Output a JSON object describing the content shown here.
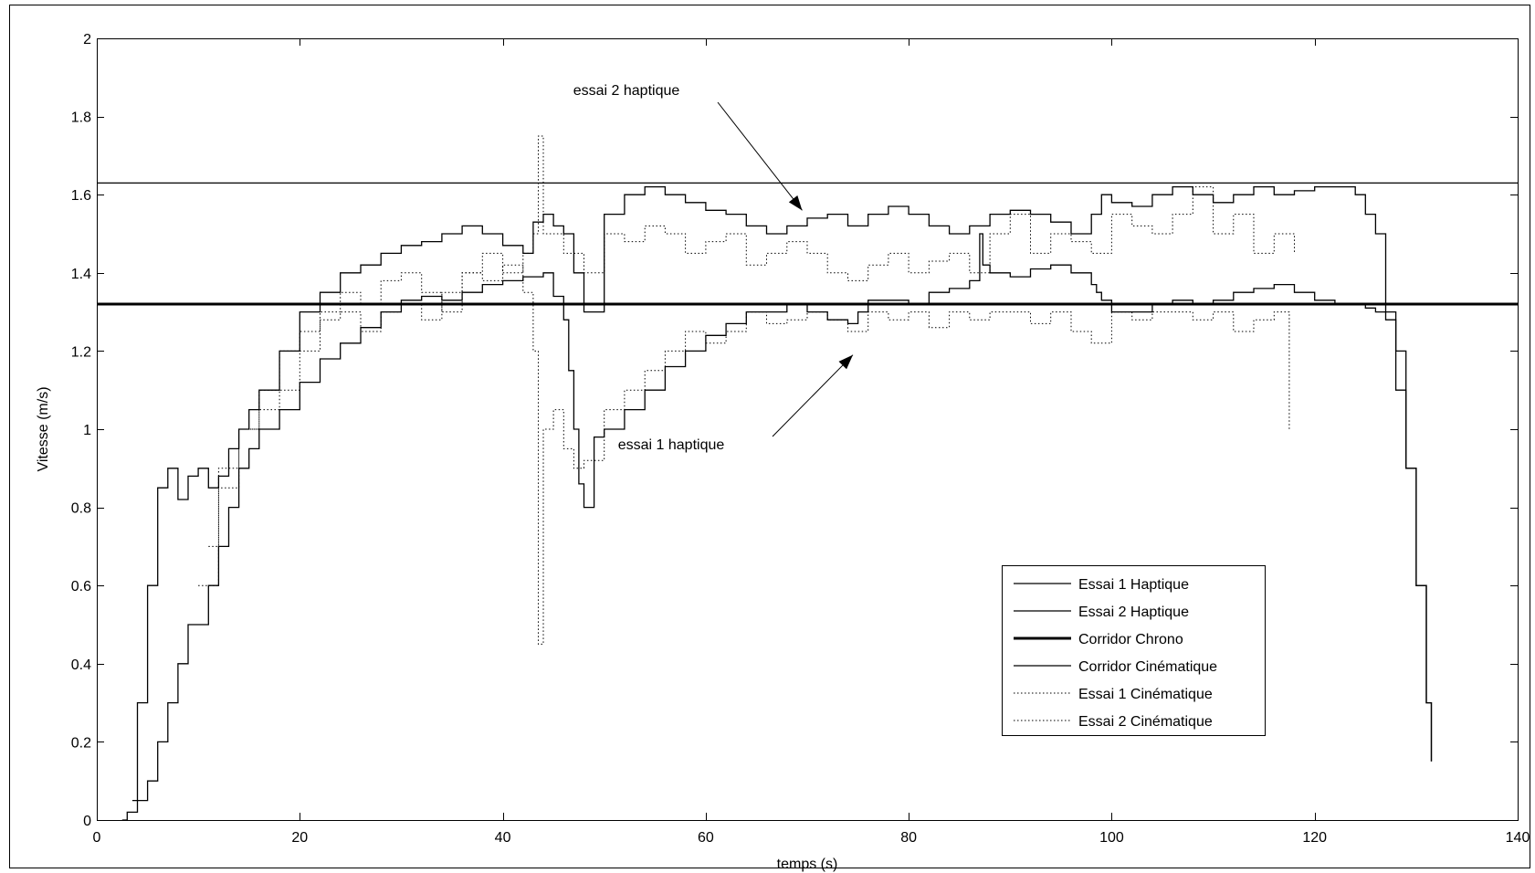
{
  "chart_data": {
    "type": "line",
    "title": "",
    "xlabel": "temps (s)",
    "ylabel": "Vitesse (m/s)",
    "xlim": [
      0,
      140
    ],
    "ylim": [
      0,
      2
    ],
    "xticks": [
      0,
      20,
      40,
      60,
      80,
      100,
      120,
      140
    ],
    "yticks": [
      0,
      0.2,
      0.4,
      0.6,
      0.8,
      1,
      1.2,
      1.4,
      1.6,
      1.8,
      2
    ],
    "grid": false,
    "legend_position": "bottom-right",
    "series": [
      {
        "name": "Essai 1 Haptique",
        "style": "solid",
        "x": [
          2.5,
          3,
          4,
          5,
          6,
          7,
          8,
          9,
          10,
          11,
          12,
          13,
          14,
          15,
          16,
          18,
          20,
          22,
          24,
          26,
          28,
          30,
          32,
          34,
          36,
          38,
          40,
          42,
          44,
          45,
          46,
          46.5,
          47,
          47.5,
          48,
          49,
          50,
          52,
          54,
          56,
          58,
          60,
          62,
          64,
          66,
          68,
          70,
          72,
          74,
          75,
          76,
          78,
          80,
          82,
          84,
          86,
          87,
          87.3,
          88,
          90,
          92,
          94,
          96,
          98,
          98.5,
          99,
          100,
          102,
          104,
          106,
          108,
          110,
          112,
          114,
          116,
          118,
          120,
          122,
          124,
          125,
          126,
          127,
          128,
          129,
          130,
          131,
          131.5
        ],
        "values": [
          0,
          0.02,
          0.05,
          0.1,
          0.2,
          0.3,
          0.4,
          0.5,
          0.5,
          0.6,
          0.7,
          0.8,
          0.9,
          0.95,
          1.0,
          1.05,
          1.12,
          1.18,
          1.22,
          1.26,
          1.3,
          1.33,
          1.34,
          1.33,
          1.35,
          1.37,
          1.38,
          1.39,
          1.4,
          1.34,
          1.28,
          1.15,
          1.0,
          0.86,
          0.8,
          0.98,
          1.0,
          1.05,
          1.1,
          1.16,
          1.2,
          1.24,
          1.27,
          1.3,
          1.3,
          1.32,
          1.3,
          1.28,
          1.27,
          1.3,
          1.33,
          1.33,
          1.32,
          1.35,
          1.36,
          1.38,
          1.5,
          1.42,
          1.4,
          1.39,
          1.41,
          1.42,
          1.4,
          1.37,
          1.35,
          1.33,
          1.3,
          1.3,
          1.32,
          1.33,
          1.32,
          1.33,
          1.35,
          1.36,
          1.37,
          1.35,
          1.33,
          1.32,
          1.32,
          1.31,
          1.3,
          1.28,
          1.2,
          0.9,
          0.6,
          0.3,
          0.15
        ]
      },
      {
        "name": "Essai 2 Haptique",
        "style": "solid",
        "x": [
          3.5,
          4,
          5,
          6,
          7,
          8,
          9,
          10,
          11,
          12,
          13,
          14,
          15,
          16,
          18,
          20,
          22,
          24,
          26,
          28,
          30,
          32,
          34,
          36,
          38,
          40,
          42,
          43,
          44,
          45,
          46,
          47,
          48,
          50,
          52,
          54,
          56,
          58,
          60,
          62,
          64,
          66,
          68,
          70,
          72,
          74,
          76,
          78,
          80,
          82,
          84,
          86,
          88,
          90,
          92,
          94,
          96,
          98,
          99,
          100,
          102,
          104,
          106,
          108,
          110,
          112,
          114,
          116,
          118,
          120,
          122,
          124,
          125,
          126,
          127,
          128,
          129,
          130,
          131,
          131.5
        ],
        "values": [
          0.05,
          0.3,
          0.6,
          0.85,
          0.9,
          0.82,
          0.88,
          0.9,
          0.85,
          0.88,
          0.95,
          1.0,
          1.05,
          1.1,
          1.2,
          1.3,
          1.35,
          1.4,
          1.42,
          1.45,
          1.47,
          1.48,
          1.5,
          1.52,
          1.5,
          1.47,
          1.45,
          1.53,
          1.55,
          1.52,
          1.5,
          1.4,
          1.3,
          1.55,
          1.6,
          1.62,
          1.6,
          1.58,
          1.56,
          1.55,
          1.52,
          1.5,
          1.52,
          1.54,
          1.55,
          1.52,
          1.55,
          1.57,
          1.55,
          1.52,
          1.5,
          1.52,
          1.55,
          1.56,
          1.55,
          1.53,
          1.5,
          1.55,
          1.6,
          1.58,
          1.57,
          1.6,
          1.62,
          1.6,
          1.58,
          1.6,
          1.62,
          1.6,
          1.61,
          1.62,
          1.62,
          1.6,
          1.55,
          1.5,
          1.3,
          1.1,
          0.9,
          0.6,
          0.3,
          0.15
        ]
      },
      {
        "name": "Corridor Chrono",
        "style": "thick",
        "x": [
          0,
          140
        ],
        "values": [
          1.32,
          1.32
        ]
      },
      {
        "name": "Corridor Cinématique",
        "style": "solid",
        "x": [
          0,
          140
        ],
        "values": [
          1.63,
          1.63
        ]
      },
      {
        "name": "Essai 1 Cinématique",
        "style": "dotted",
        "x": [
          10,
          12,
          14,
          16,
          18,
          20,
          22,
          24,
          26,
          28,
          30,
          32,
          34,
          36,
          38,
          40,
          42,
          43,
          43.5,
          44,
          45,
          46,
          47,
          48,
          50,
          52,
          54,
          56,
          58,
          60,
          62,
          64,
          66,
          68,
          70,
          72,
          74,
          76,
          78,
          80,
          82,
          84,
          86,
          88,
          90,
          92,
          94,
          96,
          98,
          100,
          102,
          104,
          106,
          108,
          110,
          112,
          114,
          116,
          117.5
        ],
        "values": [
          0.6,
          0.85,
          1.0,
          1.05,
          1.1,
          1.2,
          1.28,
          1.3,
          1.25,
          1.3,
          1.32,
          1.28,
          1.35,
          1.4,
          1.38,
          1.42,
          1.35,
          1.2,
          0.45,
          1.0,
          1.05,
          0.95,
          0.9,
          0.92,
          1.05,
          1.1,
          1.15,
          1.2,
          1.25,
          1.22,
          1.25,
          1.3,
          1.27,
          1.28,
          1.3,
          1.28,
          1.25,
          1.3,
          1.28,
          1.3,
          1.26,
          1.3,
          1.28,
          1.3,
          1.3,
          1.27,
          1.3,
          1.25,
          1.22,
          1.3,
          1.28,
          1.3,
          1.3,
          1.28,
          1.3,
          1.25,
          1.28,
          1.3,
          1.0
        ]
      },
      {
        "name": "Essai 2 Cinématique",
        "style": "dotted",
        "x": [
          11,
          12,
          14,
          16,
          18,
          20,
          22,
          24,
          26,
          28,
          30,
          32,
          34,
          36,
          38,
          40,
          42,
          43,
          43.5,
          44,
          46,
          48,
          50,
          52,
          54,
          56,
          58,
          60,
          62,
          64,
          66,
          68,
          70,
          72,
          74,
          76,
          78,
          80,
          82,
          84,
          86,
          88,
          90,
          92,
          94,
          96,
          98,
          100,
          102,
          104,
          106,
          108,
          110,
          112,
          114,
          116,
          118
        ],
        "values": [
          0.7,
          0.9,
          1.0,
          1.1,
          1.2,
          1.25,
          1.3,
          1.35,
          1.32,
          1.38,
          1.4,
          1.35,
          1.3,
          1.4,
          1.45,
          1.4,
          1.45,
          1.5,
          1.75,
          1.5,
          1.45,
          1.4,
          1.5,
          1.48,
          1.52,
          1.5,
          1.45,
          1.48,
          1.5,
          1.42,
          1.45,
          1.48,
          1.45,
          1.4,
          1.38,
          1.42,
          1.45,
          1.4,
          1.43,
          1.45,
          1.4,
          1.5,
          1.55,
          1.45,
          1.5,
          1.48,
          1.45,
          1.55,
          1.52,
          1.5,
          1.55,
          1.62,
          1.5,
          1.55,
          1.45,
          1.5,
          1.45
        ]
      }
    ],
    "annotations": [
      {
        "text": "essai 2 haptique",
        "target_x": 69.5,
        "target_y": 1.56
      },
      {
        "text": "essai 1 haptique",
        "target_x": 74.5,
        "target_y": 1.19
      }
    ],
    "legend": [
      {
        "label": "Essai 1 Haptique",
        "style": "solid"
      },
      {
        "label": "Essai 2 Haptique",
        "style": "solid"
      },
      {
        "label": "Corridor Chrono",
        "style": "thick"
      },
      {
        "label": "Corridor Cinématique",
        "style": "solid"
      },
      {
        "label": "Essai 1 Cinématique",
        "style": "dotted"
      },
      {
        "label": "Essai 2 Cinématique",
        "style": "dotted"
      }
    ]
  }
}
